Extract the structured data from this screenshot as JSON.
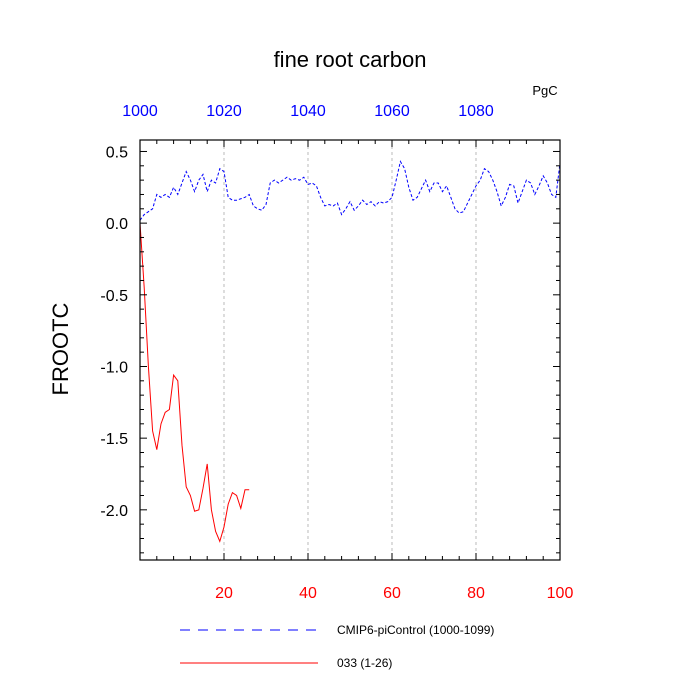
{
  "chart_data": {
    "type": "line",
    "title": "fine root carbon",
    "units_label": "PgC",
    "ylabel": "FROOTC",
    "ylim": [
      -2.35,
      0.58
    ],
    "yticks": [
      0.5,
      0.0,
      -0.5,
      -1.0,
      -1.5,
      -2.0
    ],
    "ytick_labels": [
      "0.5",
      "0.0",
      "-0.5",
      "-1.0",
      "-1.5",
      "-2.0"
    ],
    "bottom_axis": {
      "xlim": [
        0,
        100
      ],
      "ticks": [
        20,
        40,
        60,
        80,
        100
      ],
      "tick_labels": [
        "20",
        "40",
        "60",
        "80",
        "100"
      ],
      "color": "#ff0000"
    },
    "top_axis": {
      "xlim": [
        1000,
        1100
      ],
      "ticks": [
        1000,
        1020,
        1040,
        1060,
        1080
      ],
      "tick_labels": [
        "1000",
        "1020",
        "1040",
        "1060",
        "1080"
      ],
      "color": "#0000ff"
    },
    "vertical_gridlines_at": [
      20,
      40,
      60,
      80
    ],
    "series": [
      {
        "name": "CMIP6-piControl (1000-1099)",
        "color": "#0000ff",
        "dash": "dashed",
        "x": [
          0,
          1,
          2,
          3,
          4,
          5,
          6,
          7,
          8,
          9,
          10,
          11,
          12,
          13,
          14,
          15,
          16,
          17,
          18,
          19,
          20,
          21,
          22,
          23,
          24,
          25,
          26,
          27,
          28,
          29,
          30,
          31,
          32,
          33,
          34,
          35,
          36,
          37,
          38,
          39,
          40,
          41,
          42,
          43,
          44,
          45,
          46,
          47,
          48,
          49,
          50,
          51,
          52,
          53,
          54,
          55,
          56,
          57,
          58,
          59,
          60,
          61,
          62,
          63,
          64,
          65,
          66,
          67,
          68,
          69,
          70,
          71,
          72,
          73,
          74,
          75,
          76,
          77,
          78,
          79,
          80,
          81,
          82,
          83,
          84,
          85,
          86,
          87,
          88,
          89,
          90,
          91,
          92,
          93,
          94,
          95,
          96,
          97,
          98,
          99,
          100
        ],
        "values": [
          0.02,
          0.06,
          0.08,
          0.1,
          0.2,
          0.18,
          0.2,
          0.18,
          0.25,
          0.2,
          0.28,
          0.36,
          0.3,
          0.22,
          0.3,
          0.34,
          0.22,
          0.3,
          0.28,
          0.38,
          0.36,
          0.18,
          0.16,
          0.16,
          0.17,
          0.18,
          0.2,
          0.12,
          0.1,
          0.09,
          0.13,
          0.28,
          0.3,
          0.28,
          0.3,
          0.32,
          0.3,
          0.31,
          0.3,
          0.32,
          0.27,
          0.28,
          0.26,
          0.18,
          0.12,
          0.13,
          0.12,
          0.14,
          0.06,
          0.1,
          0.15,
          0.09,
          0.12,
          0.16,
          0.13,
          0.15,
          0.12,
          0.15,
          0.14,
          0.15,
          0.18,
          0.3,
          0.43,
          0.38,
          0.25,
          0.16,
          0.18,
          0.24,
          0.3,
          0.22,
          0.28,
          0.28,
          0.22,
          0.26,
          0.18,
          0.1,
          0.07,
          0.08,
          0.14,
          0.2,
          0.26,
          0.3,
          0.38,
          0.36,
          0.3,
          0.22,
          0.12,
          0.18,
          0.27,
          0.26,
          0.14,
          0.22,
          0.3,
          0.28,
          0.2,
          0.26,
          0.33,
          0.28,
          0.2,
          0.18,
          0.42
        ]
      },
      {
        "name": "033 (1-26)",
        "color": "#ff0000",
        "dash": "solid",
        "x": [
          0,
          1,
          2,
          3,
          4,
          5,
          6,
          7,
          8,
          9,
          10,
          11,
          12,
          13,
          14,
          15,
          16,
          17,
          18,
          19,
          20,
          21,
          22,
          23,
          24,
          25,
          26
        ],
        "values": [
          0.0,
          -0.45,
          -1.0,
          -1.45,
          -1.58,
          -1.4,
          -1.32,
          -1.3,
          -1.06,
          -1.1,
          -1.55,
          -1.84,
          -1.9,
          -2.01,
          -2.0,
          -1.85,
          -1.68,
          -2.0,
          -2.15,
          -2.22,
          -2.12,
          -1.96,
          -1.88,
          -1.9,
          -1.99,
          -1.86,
          -1.86
        ]
      }
    ],
    "legend_position": "bottom"
  }
}
